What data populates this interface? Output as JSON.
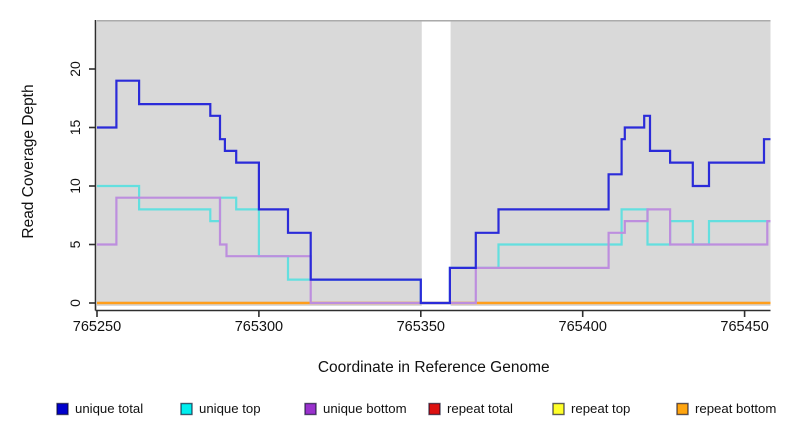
{
  "chart_data": {
    "type": "step-line",
    "title": "",
    "xlabel": "Coordinate in Reference Genome",
    "ylabel": "Read Coverage Depth",
    "xlim": [
      765250,
      765458
    ],
    "ylim": [
      0,
      24.2
    ],
    "grid": false,
    "legend_position": "bottom",
    "panel_bg": "#d9d9d9",
    "panel_top_border": "#ababab",
    "axis_color": "#2e2e2e",
    "masked_region": {
      "from": 765350.3,
      "to": 765359.2,
      "color": "#ffffff"
    },
    "xticks": [
      765250,
      765300,
      765350,
      765400,
      765450
    ],
    "xtick_labels": [
      "765250",
      "765300",
      "765350",
      "765400",
      "765450"
    ],
    "yticks": [
      0,
      5,
      10,
      15,
      20
    ],
    "ytick_labels": [
      "0",
      "5",
      "10",
      "15",
      "20"
    ],
    "draw_order": [
      "repeat-total",
      "repeat-top",
      "repeat-bottom",
      "unique-top",
      "unique-bottom",
      "unique-total"
    ],
    "series": [
      {
        "id": "unique-total",
        "label": "unique total",
        "line_color": "#2b2bd9",
        "legend_fill": "#0000cd",
        "points": [
          [
            765250,
            15
          ],
          [
            765256,
            19
          ],
          [
            765263,
            17
          ],
          [
            765285,
            16
          ],
          [
            765288,
            14
          ],
          [
            765289.5,
            13
          ],
          [
            765293,
            12
          ],
          [
            765300,
            8
          ],
          [
            765309,
            6
          ],
          [
            765316,
            2
          ],
          [
            765350,
            0
          ],
          [
            765359,
            3
          ],
          [
            765367,
            6
          ],
          [
            765374,
            8
          ],
          [
            765408,
            11
          ],
          [
            765412,
            14
          ],
          [
            765413,
            15
          ],
          [
            765419,
            16
          ],
          [
            765420.8,
            13
          ],
          [
            765427,
            12
          ],
          [
            765434,
            10
          ],
          [
            765439,
            12
          ],
          [
            765456,
            14
          ]
        ]
      },
      {
        "id": "unique-top",
        "label": "unique top",
        "line_color": "#63dfdf",
        "legend_fill": "#00eeee",
        "points": [
          [
            765250,
            10
          ],
          [
            765263,
            8
          ],
          [
            765285,
            7
          ],
          [
            765288,
            9
          ],
          [
            765293,
            8
          ],
          [
            765300,
            4
          ],
          [
            765309,
            2
          ],
          [
            765350,
            0
          ],
          [
            765359,
            3
          ],
          [
            765374,
            5
          ],
          [
            765412,
            8
          ],
          [
            765420,
            5
          ],
          [
            765427,
            7
          ],
          [
            765434,
            5
          ],
          [
            765439,
            7
          ]
        ]
      },
      {
        "id": "unique-bottom",
        "label": "unique bottom",
        "line_color": "#bd8ede",
        "legend_fill": "#9a32cd",
        "points": [
          [
            765250,
            5
          ],
          [
            765256,
            9
          ],
          [
            765288,
            5
          ],
          [
            765290,
            4
          ],
          [
            765316,
            0
          ],
          [
            765367,
            3
          ],
          [
            765408,
            6
          ],
          [
            765413,
            7
          ],
          [
            765420,
            8
          ],
          [
            765427,
            5
          ],
          [
            765457,
            7
          ]
        ]
      },
      {
        "id": "repeat-total",
        "label": "repeat total",
        "line_color": "#cd2222",
        "legend_fill": "#dd1111",
        "points": [
          [
            765250,
            0
          ]
        ]
      },
      {
        "id": "repeat-top",
        "label": "repeat top",
        "line_color": "#eded4f",
        "legend_fill": "#ffff2a",
        "points": [
          [
            765250,
            0
          ]
        ]
      },
      {
        "id": "repeat-bottom",
        "label": "repeat bottom",
        "line_color": "#ff9e1a",
        "legend_fill": "#ffa510",
        "points": [
          [
            765250,
            0
          ]
        ]
      }
    ],
    "legend_swatch_border": "rgba(10,10,40,0.65)"
  }
}
